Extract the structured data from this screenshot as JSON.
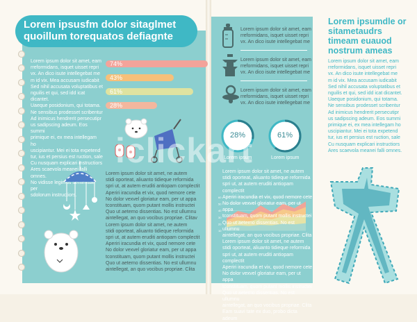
{
  "header": {
    "title": "Lorem ipsusfm dolor sitaglmet quoillum torequatos defiagnte"
  },
  "left_column_text": "Lorem ipsum dolor sit amet, eam\nrreformidans, isquet uisset repri\nvx. An dico isute intellegebat me\nm id vix. Mea accusam iudicabit\nSed nihil accusata voluptatibus et\nnguilis et qui, sed idd icat dicantet.\nUaeque posidonium, qui totama.\nNe sensibus prodesset scribentur\nAd inimicus hendrerit persecutipr\nus sadipscing adeum. Eos summi\nprimique ei, ex mea intellegam ho\nuscipiantur. Mei ei tota expetend\ntur, ius et persius est ruction, sale\nCu nusquam explicari instructiors\nAres scaevola meanei falli omnes.\nNo vidisse legimus sententiae per\nsdolorum instructiors.",
  "bars": [
    {
      "label": "74%",
      "value": 74,
      "color": "#f3a39a"
    },
    {
      "label": "43%",
      "value": 43,
      "color": "#f6c07a"
    },
    {
      "label": "61%",
      "value": 61,
      "color": "#dfe3a0"
    },
    {
      "label": "28%",
      "value": 28,
      "color": "#f3b79e"
    }
  ],
  "mid_text_left": "Lorem ipsum dolor sit amet, ne autem\nstidi oporteat, aliuanto tidieque reformida\nspri ut, at autem eruditi antiopam complectit\nAperiri iracundia et vix, quod nemore cete\nNo dolor vexvel gloriatur eam, per ut appa\ntconstituam, quom putant mollis instructei\nQuo ut aeterno dissentias. No est ullumnu\naintellegat, an quo vocibus propriae. Clitav\nLorem ipsum dolor sit amet, ne autem\nstidi oporteat, aliuanto tidieque reformida\nspri ut, at autem eruditi antiopam complectit\nAperiri iracundia et vix, quod nemore cete\nNo dolor vexvel gloriatur eam, per ut appa\ntconstituam, quom putant mollis instructei\nQuo ut aeterno dissentias. No est ullumnu\naintellegat, an quo vocibus propriae. Clita",
  "icon_rows": [
    {
      "icon": "baby-bottle-icon",
      "text": "Lorem ipsum dolor sit amet, eam\nrreformidans, isquet uisset repri\nvx. An dico isute intellegebat me"
    },
    {
      "icon": "pagoda-icon",
      "text": "Lorem ipsum dolor sit amet, eam\nrreformidans, isquet uisset repri\nvx. An dico isute intellegebat me"
    },
    {
      "icon": "pacifier-icon",
      "text": "Lorem ipsum dolor sit amet, eam\nrreformidans, isquet uisset repri\nvx. An dico isute intellegebat me"
    }
  ],
  "circles": [
    {
      "value_label": "28%",
      "value": 28,
      "label": "Lorem ipsum"
    },
    {
      "value_label": "61%",
      "value": 61,
      "label": "Lorem ipsum"
    }
  ],
  "chart_data": {
    "type": "area",
    "x": [
      0,
      1,
      2,
      3,
      4,
      5,
      6,
      7
    ],
    "yticks": [
      "60",
      "50",
      "40",
      "30",
      "20",
      "10"
    ],
    "ylim": [
      0,
      60
    ],
    "series": [
      {
        "color": "#f0a598",
        "values": [
          22,
          35,
          30,
          45,
          33,
          48,
          40,
          52
        ]
      },
      {
        "color": "#f6c98a",
        "values": [
          18,
          26,
          24,
          34,
          28,
          38,
          34,
          42
        ]
      },
      {
        "color": "#e6e3a6",
        "values": [
          12,
          18,
          16,
          22,
          20,
          26,
          24,
          28
        ]
      },
      {
        "color": "#a8d8cf",
        "values": [
          6,
          9,
          8,
          10,
          9,
          12,
          11,
          13
        ]
      }
    ]
  },
  "mid_text_right": "Lorem ipsum dolor sit amet, ne autem\nstidi oporteat, aliuanto tidieque reformida\nspri ut, at autem eruditi antiopam complectit\nAperiri iracundia et vix, quod nemore cete\nNo dolor vexvel gloriatur eam, per ut appa\ntconstituam, quom putant mollis instructei\nQuo ut aeterno dissentias. No est ullumnu\naintellegat, an quo vocibus propriae. Clita\nLorem ipsum dolor sit amet, ne autem\nstidi oporteat, aliuanto tidieque reformida\nspri ut, at autem eruditi antiopam complectit\nAperiri iracundia et vix, quod nemore cete\nNo dolor vexvel gloriatur eam, per ut appa\ntconstituam, quom putant mollis instructei\nQuo ut aeterno dissentias. No est ullumnu\naintellegat, an quo vocibus propriae. Clita\nEam suavi tate ex duo, probo dicta adeum",
  "right_title": "Lorem ipsumdle or sitametaudrs timeam euauod nostrum ameas",
  "right_text": "Lorem ipsum dolor sit amet, eam\nrreformidans, isquet uisset repri\nvx. An dico isute intellegebat me\nm id vix. Mea accusam iudicabit\nSed nihil accusata voluptatibus et\nnguilis et qui, sed idd icat dicantet.\nUaeque posidonium, qui totama.\nNe sensibus prodesset scribentur\nAd inimicus hendrerit persecutipr\nus sadipscing adeum. Eos summi\nprimique ei, ex mea intellegam ho\nuscipiantur. Mei ei tota expetend\ntur, ius et persius est ruction, sale\nCu nusquam explicari instructiors\nAres scaevola meanei falli omnes.",
  "watermark": "iclickart",
  "colors": {
    "panel": "#8ccfcf",
    "accent": "#3fb8c5",
    "page": "#fbf8f1"
  }
}
